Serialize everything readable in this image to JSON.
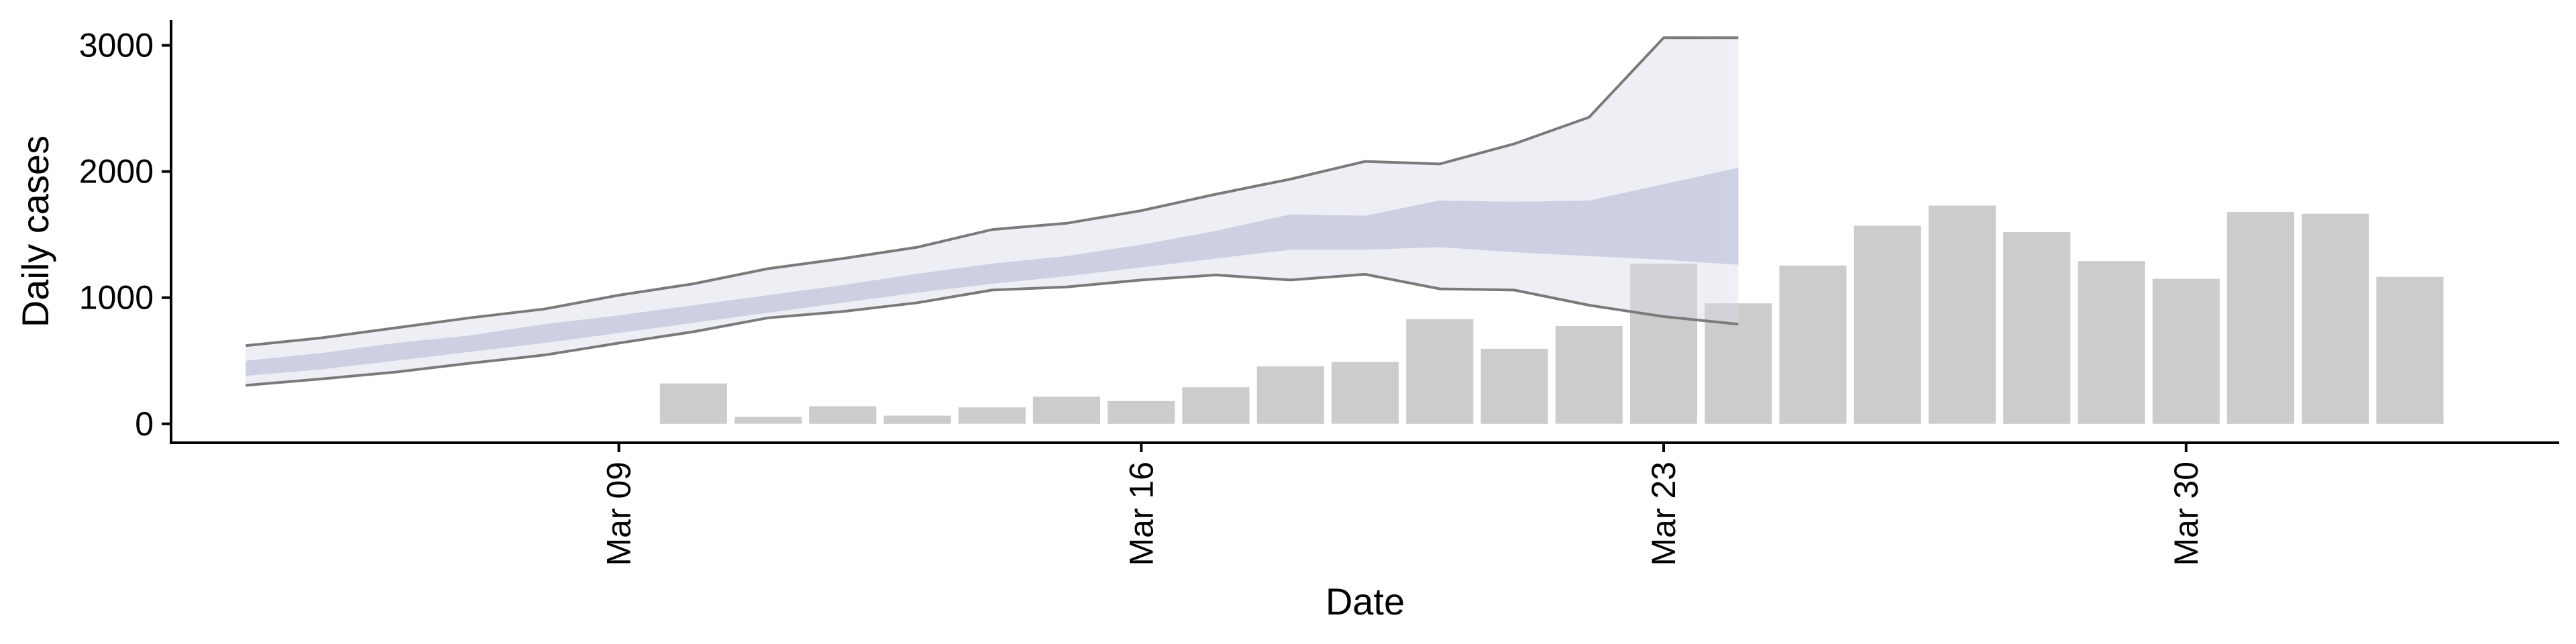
{
  "chart_data": {
    "type": "bar",
    "title": "",
    "xlabel": "Date",
    "ylabel": "Daily cases",
    "ylim": [
      -150,
      3200
    ],
    "xlim": [
      "2020-03-03",
      "2020-04-04"
    ],
    "grid": false,
    "legend": "none",
    "y_ticks": [
      {
        "value": 0,
        "label": "0"
      },
      {
        "value": 1000,
        "label": "1000"
      },
      {
        "value": 2000,
        "label": "2000"
      },
      {
        "value": 3000,
        "label": "3000"
      }
    ],
    "x_ticks": [
      {
        "date": "2020-03-09",
        "label": "Mar 09"
      },
      {
        "date": "2020-03-16",
        "label": "Mar 16"
      },
      {
        "date": "2020-03-23",
        "label": "Mar 23"
      },
      {
        "date": "2020-03-30",
        "label": "Mar 30"
      }
    ],
    "colors": {
      "bars": "#cccccc",
      "band_outer": "#d8dbe8",
      "band_inner": "#b7bdd6",
      "band_line": "#7a7a7a",
      "axis": "#000000"
    },
    "cases": {
      "dates": [
        "2020-03-10",
        "2020-03-11",
        "2020-03-12",
        "2020-03-13",
        "2020-03-14",
        "2020-03-15",
        "2020-03-16",
        "2020-03-17",
        "2020-03-18",
        "2020-03-19",
        "2020-03-20",
        "2020-03-21",
        "2020-03-22",
        "2020-03-23",
        "2020-03-24",
        "2020-03-25",
        "2020-03-26",
        "2020-03-27",
        "2020-03-28",
        "2020-03-29",
        "2020-03-30",
        "2020-03-31",
        "2020-04-01",
        "2020-04-02"
      ],
      "values": [
        320,
        55,
        140,
        65,
        130,
        215,
        180,
        290,
        455,
        490,
        830,
        595,
        775,
        1270,
        955,
        1255,
        1570,
        1730,
        1520,
        1290,
        1150,
        1680,
        1665,
        1165
      ]
    },
    "estimate": {
      "dates": [
        "2020-03-04",
        "2020-03-05",
        "2020-03-06",
        "2020-03-07",
        "2020-03-08",
        "2020-03-09",
        "2020-03-10",
        "2020-03-11",
        "2020-03-12",
        "2020-03-13",
        "2020-03-14",
        "2020-03-15",
        "2020-03-16",
        "2020-03-17",
        "2020-03-18",
        "2020-03-19",
        "2020-03-20",
        "2020-03-21",
        "2020-03-22",
        "2020-03-23",
        "2020-03-24"
      ],
      "lower_90": [
        305,
        355,
        410,
        480,
        545,
        640,
        730,
        840,
        890,
        960,
        1060,
        1085,
        1140,
        1180,
        1140,
        1185,
        1070,
        1060,
        940,
        850,
        790
      ],
      "upper_90": [
        620,
        680,
        760,
        840,
        910,
        1020,
        1110,
        1230,
        1310,
        1400,
        1540,
        1590,
        1690,
        1820,
        1940,
        2080,
        2060,
        2220,
        2430,
        3060,
        3060
      ],
      "lower_50": [
        380,
        430,
        500,
        570,
        640,
        720,
        800,
        880,
        960,
        1040,
        1110,
        1170,
        1240,
        1310,
        1380,
        1380,
        1400,
        1360,
        1330,
        1300,
        1260
      ],
      "upper_50": [
        500,
        560,
        640,
        700,
        790,
        860,
        940,
        1020,
        1100,
        1190,
        1270,
        1330,
        1420,
        1530,
        1660,
        1650,
        1770,
        1760,
        1770,
        1900,
        2030
      ]
    }
  }
}
